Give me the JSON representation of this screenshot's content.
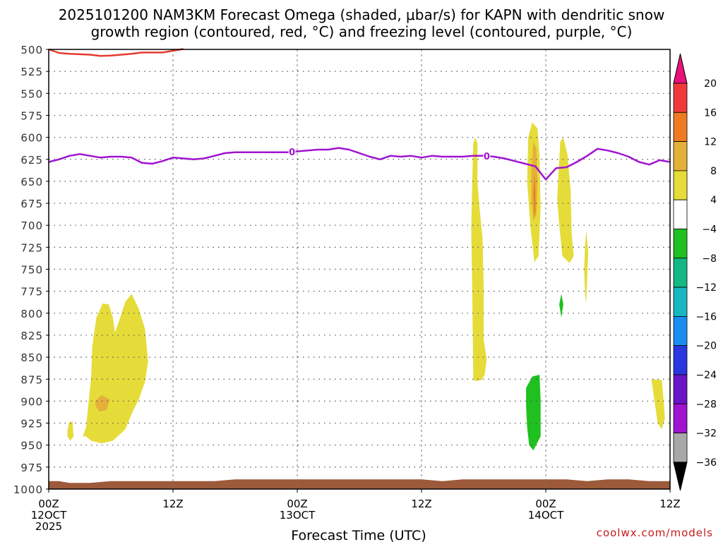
{
  "title": {
    "line1": "2025101200 NAM3KM Forecast Omega (shaded, μbar/s) for KAPN with dendritic snow",
    "line2": "growth region (contoured, red, °C) and freezing level (contoured, purple, °C)"
  },
  "credit": "coolwx.com/models",
  "chart_data": {
    "type": "time-height cross section",
    "xlabel": "Forecast Time (UTC)",
    "x_range_hours": [
      0,
      60
    ],
    "x_ticks": [
      {
        "hour": 0,
        "lines": [
          "00Z",
          "12OCT",
          "2025"
        ]
      },
      {
        "hour": 12,
        "lines": [
          "12Z"
        ]
      },
      {
        "hour": 24,
        "lines": [
          "00Z",
          "13OCT"
        ]
      },
      {
        "hour": 36,
        "lines": [
          "12Z"
        ]
      },
      {
        "hour": 48,
        "lines": [
          "00Z",
          "14OCT"
        ]
      },
      {
        "hour": 60,
        "lines": [
          "12Z"
        ]
      }
    ],
    "y_axis": "pressure (hPa)",
    "y_range": [
      500,
      1000
    ],
    "y_ticks": [
      "500",
      "525",
      "550",
      "575",
      "600",
      "625",
      "650",
      "675",
      "700",
      "725",
      "750",
      "775",
      "800",
      "825",
      "850",
      "875",
      "900",
      "925",
      "950",
      "975",
      "1000"
    ],
    "grid": true,
    "colorbar": {
      "position": "right",
      "labels": [
        "20",
        "16",
        "12",
        "8",
        "4",
        "−4",
        "−8",
        "−12",
        "−16",
        "−20",
        "−24",
        "−28",
        "−32",
        "−36"
      ],
      "colors": [
        "#e8127a",
        "#f03a3a",
        "#ee7b22",
        "#e5b03a",
        "#e5dc3a",
        "#ffffff",
        "#1fc01f",
        "#14b882",
        "#18b8c0",
        "#1a8ef0",
        "#2a36e0",
        "#6a14c8",
        "#a014d0",
        "#a8a8a8",
        "#000000"
      ]
    },
    "freezing_level": {
      "color": "#a014d0",
      "label": "0",
      "label_hours": [
        23.5,
        42.3
      ],
      "points": [
        [
          0,
          628
        ],
        [
          1,
          625
        ],
        [
          2,
          621
        ],
        [
          3,
          619
        ],
        [
          4,
          621
        ],
        [
          5,
          623
        ],
        [
          6,
          622
        ],
        [
          7,
          622
        ],
        [
          8,
          623
        ],
        [
          9,
          629
        ],
        [
          10,
          630
        ],
        [
          11,
          627
        ],
        [
          12,
          623
        ],
        [
          13,
          624
        ],
        [
          14,
          625
        ],
        [
          15,
          624
        ],
        [
          16,
          621
        ],
        [
          17,
          618
        ],
        [
          18,
          617
        ],
        [
          19,
          617
        ],
        [
          20,
          617
        ],
        [
          21,
          617
        ],
        [
          22,
          617
        ],
        [
          23,
          617
        ],
        [
          24,
          616
        ],
        [
          25,
          615
        ],
        [
          26,
          614
        ],
        [
          27,
          614
        ],
        [
          28,
          612
        ],
        [
          29,
          614
        ],
        [
          30,
          618
        ],
        [
          31,
          622
        ],
        [
          32,
          625
        ],
        [
          33,
          621
        ],
        [
          34,
          622
        ],
        [
          35,
          621
        ],
        [
          36,
          623
        ],
        [
          37,
          621
        ],
        [
          38,
          622
        ],
        [
          39,
          622
        ],
        [
          40,
          622
        ],
        [
          41,
          621
        ],
        [
          42,
          621
        ],
        [
          43,
          622
        ],
        [
          44,
          624
        ],
        [
          45,
          627
        ],
        [
          46,
          630
        ],
        [
          47,
          633
        ],
        [
          48,
          648
        ],
        [
          49,
          635
        ],
        [
          50,
          634
        ],
        [
          51,
          628
        ],
        [
          52,
          621
        ],
        [
          53,
          613
        ],
        [
          54,
          615
        ],
        [
          55,
          618
        ],
        [
          56,
          622
        ],
        [
          57,
          628
        ],
        [
          58,
          631
        ],
        [
          59,
          626
        ],
        [
          60,
          628
        ]
      ]
    },
    "dendritic_growth_region": {
      "color": "#e23c2f",
      "points": [
        [
          0,
          500
        ],
        [
          1,
          504
        ],
        [
          2,
          505
        ],
        [
          4,
          506
        ],
        [
          5,
          507.5
        ],
        [
          6,
          507
        ],
        [
          8,
          505
        ],
        [
          9,
          503.5
        ],
        [
          11,
          503.5
        ],
        [
          12,
          501.5
        ],
        [
          13,
          499.5
        ]
      ]
    },
    "omega_regions": [
      {
        "value": 4,
        "points": [
          [
            3.3,
            940
          ],
          [
            3.6,
            930
          ],
          [
            4.1,
            873
          ],
          [
            4.2,
            838
          ],
          [
            4.6,
            805
          ],
          [
            5.2,
            789
          ],
          [
            5.8,
            790
          ],
          [
            6.2,
            805
          ],
          [
            6.4,
            822
          ],
          [
            6.9,
            805
          ],
          [
            7.4,
            787
          ],
          [
            8,
            778
          ],
          [
            8.7,
            795
          ],
          [
            9.3,
            818
          ],
          [
            9.6,
            855
          ],
          [
            9.3,
            878
          ],
          [
            8.7,
            898
          ],
          [
            8.1,
            912
          ],
          [
            7.4,
            932
          ],
          [
            6.2,
            945
          ],
          [
            5.1,
            948
          ],
          [
            4.1,
            945
          ],
          [
            3.6,
            940
          ]
        ]
      },
      {
        "value": 4,
        "points": [
          [
            1.8,
            933
          ],
          [
            2,
            924
          ],
          [
            2.3,
            923
          ],
          [
            2.4,
            940
          ],
          [
            2.1,
            945
          ],
          [
            1.8,
            940
          ]
        ]
      },
      {
        "value": 8,
        "points": [
          [
            4.5,
            900
          ],
          [
            5.1,
            893
          ],
          [
            5.9,
            898
          ],
          [
            5.6,
            910
          ],
          [
            4.9,
            912
          ],
          [
            4.5,
            905
          ]
        ]
      },
      {
        "value": 4,
        "points": [
          [
            41,
            875
          ],
          [
            40.9,
            775
          ],
          [
            40.8,
            705
          ],
          [
            40.9,
            648
          ],
          [
            41,
            607
          ],
          [
            41.2,
            600
          ],
          [
            41.4,
            607
          ],
          [
            41.4,
            650
          ],
          [
            41.6,
            680
          ],
          [
            41.9,
            715
          ],
          [
            42,
            770
          ],
          [
            42,
            830
          ],
          [
            42.3,
            852
          ],
          [
            42.1,
            870
          ],
          [
            41.8,
            876
          ],
          [
            41.3,
            877
          ],
          [
            41,
            876
          ]
        ]
      },
      {
        "value": 4,
        "points": [
          [
            46.3,
            600
          ],
          [
            46.7,
            583
          ],
          [
            47.2,
            590
          ],
          [
            47.4,
            620
          ],
          [
            47.5,
            680
          ],
          [
            47.3,
            735
          ],
          [
            46.9,
            742
          ],
          [
            46.5,
            700
          ],
          [
            46.2,
            650
          ]
        ]
      },
      {
        "value": 8,
        "points": [
          [
            46.6,
            640
          ],
          [
            46.8,
            605
          ],
          [
            47.1,
            613
          ],
          [
            47.2,
            650
          ],
          [
            47.1,
            688
          ],
          [
            46.8,
            695
          ],
          [
            46.6,
            670
          ]
        ]
      },
      {
        "value": 12,
        "points": [
          [
            46.8,
            665
          ],
          [
            46.9,
            640
          ],
          [
            47,
            660
          ],
          [
            47,
            685
          ],
          [
            46.9,
            690
          ]
        ]
      },
      {
        "value": 4,
        "points": [
          [
            49.1,
            670
          ],
          [
            49.4,
            605
          ],
          [
            49.7,
            600
          ],
          [
            50.1,
            620
          ],
          [
            50.4,
            660
          ],
          [
            50.5,
            710
          ],
          [
            50.7,
            735
          ],
          [
            50.3,
            743
          ],
          [
            49.6,
            735
          ],
          [
            49.3,
            700
          ]
        ]
      },
      {
        "value": 4,
        "points": [
          [
            51.7,
            750
          ],
          [
            51.8,
            722
          ],
          [
            51.9,
            706
          ],
          [
            52.1,
            730
          ],
          [
            52,
            760
          ],
          [
            51.9,
            788
          ],
          [
            51.8,
            780
          ]
        ]
      },
      {
        "value": 4,
        "points": [
          [
            58.2,
            875
          ],
          [
            59.2,
            876
          ],
          [
            59.4,
            902
          ],
          [
            59.5,
            920
          ],
          [
            59.2,
            932
          ],
          [
            58.8,
            925
          ],
          [
            58.5,
            900
          ]
        ]
      },
      {
        "value": -4,
        "points": [
          [
            46.1,
            885
          ],
          [
            46.7,
            872
          ],
          [
            47.4,
            870
          ],
          [
            47.5,
            900
          ],
          [
            47.5,
            940
          ],
          [
            46.8,
            956
          ],
          [
            46.4,
            950
          ],
          [
            46.2,
            930
          ],
          [
            46.1,
            905
          ]
        ]
      },
      {
        "value": -4,
        "points": [
          [
            49.3,
            790
          ],
          [
            49.5,
            778
          ],
          [
            49.7,
            790
          ],
          [
            49.5,
            805
          ]
        ]
      }
    ],
    "terrain_color": "#9c5a3a",
    "terrain": [
      [
        0,
        991
      ],
      [
        1,
        991
      ],
      [
        2,
        993
      ],
      [
        4,
        993
      ],
      [
        6,
        991
      ],
      [
        8,
        991
      ],
      [
        12,
        991
      ],
      [
        16,
        991
      ],
      [
        18,
        989
      ],
      [
        20,
        989
      ],
      [
        24,
        989
      ],
      [
        28,
        989
      ],
      [
        32,
        989
      ],
      [
        36,
        989
      ],
      [
        38,
        991
      ],
      [
        40,
        989
      ],
      [
        44,
        989
      ],
      [
        48,
        989
      ],
      [
        50,
        989
      ],
      [
        52,
        991
      ],
      [
        54,
        989
      ],
      [
        56,
        989
      ],
      [
        58,
        991
      ],
      [
        60,
        991
      ]
    ]
  }
}
